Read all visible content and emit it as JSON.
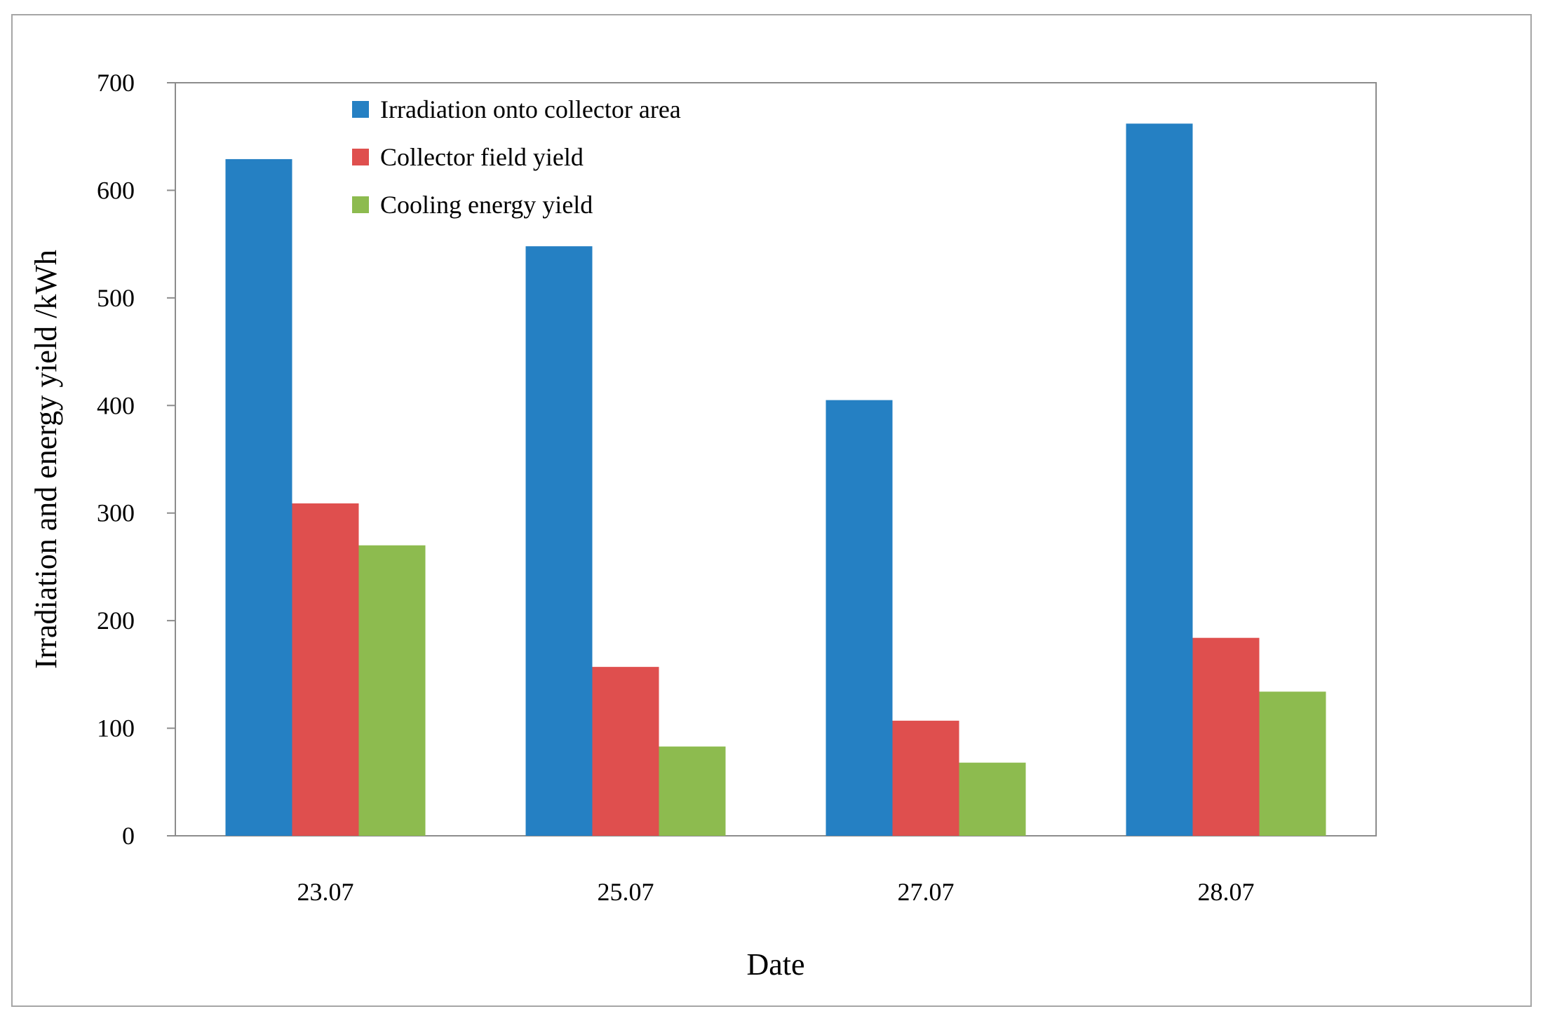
{
  "chart_data": {
    "type": "bar",
    "categories": [
      "23.07",
      "25.07",
      "27.07",
      "28.07"
    ],
    "series": [
      {
        "name": "Irradiation onto collector area",
        "values": [
          629,
          548,
          405,
          662
        ],
        "color": "#2580c3"
      },
      {
        "name": "Collector field yield",
        "values": [
          309,
          157,
          107,
          184
        ],
        "color": "#df4f4e"
      },
      {
        "name": "Cooling energy yield",
        "values": [
          270,
          83,
          68,
          134
        ],
        "color": "#8dbb4f"
      }
    ],
    "title": "",
    "xlabel": "Date",
    "ylabel": "Irradiation and energy yield /kWh",
    "ylim": [
      0,
      700
    ],
    "yticks": [
      0,
      100,
      200,
      300,
      400,
      500,
      600,
      700
    ],
    "grid": false,
    "legend_position": "top-left-inside"
  }
}
